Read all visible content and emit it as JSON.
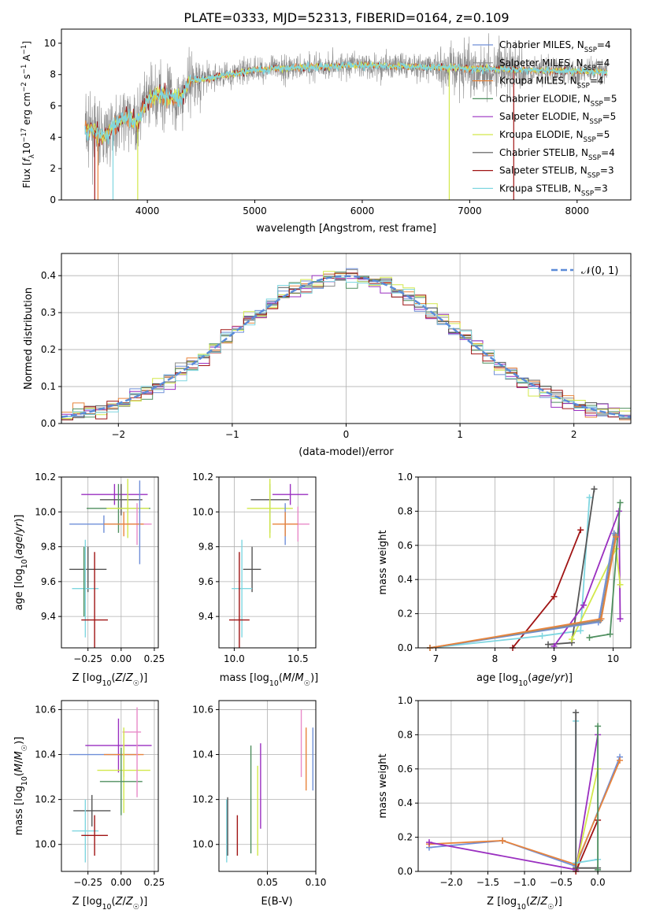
{
  "title": "PLATE=0333, MJD=52313, FIBERID=0164, z=0.109",
  "colors": {
    "chabrier_miles": "#6f8fd8",
    "salpeter_miles": "#8b8b8b",
    "kroupa_miles": "#e8843c",
    "chabrier_elodie": "#4f8f5f",
    "salpeter_elodie": "#9a2fc0",
    "kroupa_elodie": "#d2e84a",
    "chabrier_stelib": "#555555",
    "salpeter_stelib": "#a01414",
    "kroupa_stelib": "#7fd6e0",
    "extra_pink": "#e88ac8",
    "gaussian": "#5b8bd8"
  },
  "chart_data": [
    {
      "id": "spectrum",
      "type": "line",
      "xlabel": "wavelength [Angstrom, rest frame]",
      "ylabel": "Flux [f_λ 10^-17 erg cm^-2 s^-1 A^-1]",
      "xlim": [
        3200,
        8500
      ],
      "ylim": [
        0,
        10.9
      ],
      "xticks": [
        "4000",
        "5000",
        "6000",
        "7000",
        "8000"
      ],
      "yticks": [
        "0",
        "2",
        "4",
        "6",
        "8",
        "10"
      ],
      "legend": [
        {
          "label": "Chabrier MILES, N",
          "sub": "SSP",
          "suffix": "=4",
          "color": "#6f8fd8"
        },
        {
          "label": "Salpeter MILES, N",
          "sub": "SSP",
          "suffix": "=4",
          "color": "#8b8b8b"
        },
        {
          "label": "Kroupa MILES, N",
          "sub": "SSP",
          "suffix": "=4",
          "color": "#e8843c"
        },
        {
          "label": "Chabrier ELODIE, N",
          "sub": "SSP",
          "suffix": "=5",
          "color": "#4f8f5f"
        },
        {
          "label": "Salpeter ELODIE, N",
          "sub": "SSP",
          "suffix": "=5",
          "color": "#9a2fc0"
        },
        {
          "label": "Kroupa ELODIE, N",
          "sub": "SSP",
          "suffix": "=5",
          "color": "#d2e84a"
        },
        {
          "label": "Chabrier STELIB, N",
          "sub": "SSP",
          "suffix": "=4",
          "color": "#555555"
        },
        {
          "label": "Salpeter STELIB, N",
          "sub": "SSP",
          "suffix": "=3",
          "color": "#a01414"
        },
        {
          "label": "Kroupa STELIB, N",
          "sub": "SSP",
          "suffix": "=3",
          "color": "#7fd6e0"
        }
      ],
      "data_range": [
        3420,
        8280
      ],
      "continuum_points": [
        [
          3420,
          4.6
        ],
        [
          3600,
          4.0
        ],
        [
          3700,
          4.8
        ],
        [
          3800,
          5.2
        ],
        [
          3900,
          4.9
        ],
        [
          4000,
          6.4
        ],
        [
          4100,
          6.8
        ],
        [
          4200,
          6.6
        ],
        [
          4300,
          6.4
        ],
        [
          4400,
          7.6
        ],
        [
          4600,
          7.8
        ],
        [
          5000,
          8.3
        ],
        [
          5500,
          8.5
        ],
        [
          6000,
          8.6
        ],
        [
          6500,
          8.5
        ],
        [
          7000,
          8.4
        ],
        [
          7500,
          8.3
        ],
        [
          8000,
          8.2
        ],
        [
          8280,
          8.2
        ]
      ],
      "dropouts": [
        {
          "x": 3510,
          "color": "#a01414"
        },
        {
          "x": 3540,
          "color": "#e8843c"
        },
        {
          "x": 3680,
          "color": "#7fd6e0"
        },
        {
          "x": 3910,
          "color": "#d2e84a"
        },
        {
          "x": 6810,
          "color": "#d2e84a"
        },
        {
          "x": 7410,
          "color": "#a01414"
        }
      ]
    },
    {
      "id": "residuals",
      "type": "histogram",
      "xlabel": "(data-model)/error",
      "ylabel": "Normed distribution",
      "xlim": [
        -2.5,
        2.5
      ],
      "ylim": [
        0,
        0.46
      ],
      "xticks": [
        "−2",
        "−1",
        "0",
        "1",
        "2"
      ],
      "yticks": [
        "0.0",
        "0.1",
        "0.2",
        "0.3",
        "0.4"
      ],
      "bin_width": 0.1,
      "gaussian_label": "𝒩(0, 1)",
      "series_colors": [
        "#6f8fd8",
        "#8b8b8b",
        "#e8843c",
        "#4f8f5f",
        "#9a2fc0",
        "#d2e84a",
        "#555555",
        "#a01414",
        "#7fd6e0"
      ]
    },
    {
      "id": "age_vs_Z",
      "type": "errorbar",
      "xlabel": "Z [log10(Z/Z☉)]",
      "ylabel": "age [log10(age/yr)]",
      "xlim": [
        -0.45,
        0.28
      ],
      "ylim": [
        9.22,
        10.2
      ],
      "xticks": [
        -0.25,
        0.0,
        0.25
      ],
      "xticklabels": [
        "−0.25",
        "0.00",
        "0.25"
      ],
      "yticks": [
        9.4,
        9.6,
        9.8,
        10.0,
        10.2
      ],
      "yticklabels": [
        "9.4",
        "9.6",
        "9.8",
        "10.0",
        "10.2"
      ],
      "points": [
        {
          "x": -0.05,
          "y": 10.1,
          "xerr": 0.25,
          "yerr": 0.06,
          "color": "#9a2fc0"
        },
        {
          "x": 0.0,
          "y": 10.07,
          "xerr": 0.16,
          "yerr": 0.09,
          "color": "#555555"
        },
        {
          "x": -0.02,
          "y": 10.02,
          "xerr": 0.24,
          "yerr": 0.14,
          "color": "#4f8f5f"
        },
        {
          "x": 0.05,
          "y": 10.02,
          "xerr": 0.16,
          "yerr": 0.17,
          "color": "#d2e84a"
        },
        {
          "x": -0.13,
          "y": 9.93,
          "xerr": 0.26,
          "yerr": 0.05,
          "color": "#6f8fd8"
        },
        {
          "x": 0.12,
          "y": 9.93,
          "xerr": 0.11,
          "yerr": 0.12,
          "color": "#e88ac8"
        },
        {
          "x": 0.02,
          "y": 9.93,
          "xerr": 0.15,
          "yerr": 0.07,
          "color": "#e8843c"
        },
        {
          "x": 0.14,
          "y": 9.94,
          "xerr": 0.0,
          "yerr": 0.24,
          "color": "#6f8fd8"
        },
        {
          "x": -0.25,
          "y": 9.67,
          "xerr": 0.14,
          "yerr": 0.13,
          "color": "#555555"
        },
        {
          "x": -0.27,
          "y": 9.56,
          "xerr": 0.1,
          "yerr": 0.28,
          "color": "#7fd6e0"
        },
        {
          "x": -0.28,
          "y": 9.6,
          "xerr": 0.0,
          "yerr": 0.2,
          "color": "#4f8f5f"
        },
        {
          "x": -0.2,
          "y": 9.38,
          "xerr": 0.1,
          "yerr": 0.39,
          "color": "#a01414"
        }
      ]
    },
    {
      "id": "age_vs_mass",
      "type": "errorbar",
      "xlabel": "mass [log10(M/M☉)]",
      "ylabel": "",
      "xlim": [
        9.88,
        10.64
      ],
      "ylim": [
        9.22,
        10.2
      ],
      "xticks": [
        10.0,
        10.5
      ],
      "xticklabels": [
        "10.0",
        "10.5"
      ],
      "yticks": [
        9.4,
        9.6,
        9.8,
        10.0,
        10.2
      ],
      "yticklabels": [
        "9.4",
        "9.6",
        "9.8",
        "10.0",
        "10.2"
      ],
      "points": [
        {
          "x": 10.44,
          "y": 10.1,
          "xerr": 0.14,
          "yerr": 0.06,
          "color": "#9a2fc0"
        },
        {
          "x": 10.28,
          "y": 10.07,
          "xerr": 0.15,
          "yerr": 0.09,
          "color": "#555555"
        },
        {
          "x": 10.28,
          "y": 10.02,
          "xerr": 0.0,
          "yerr": 0.14,
          "color": "#4f8f5f"
        },
        {
          "x": 10.28,
          "y": 10.02,
          "xerr": 0.18,
          "yerr": 0.17,
          "color": "#d2e84a"
        },
        {
          "x": 10.4,
          "y": 9.93,
          "xerr": 0.0,
          "yerr": 0.12,
          "color": "#6f8fd8"
        },
        {
          "x": 10.5,
          "y": 9.93,
          "xerr": 0.09,
          "yerr": 0.1,
          "color": "#e88ac8"
        },
        {
          "x": 10.4,
          "y": 9.93,
          "xerr": 0.1,
          "yerr": 0.07,
          "color": "#e8843c"
        },
        {
          "x": 10.14,
          "y": 9.67,
          "xerr": 0.07,
          "yerr": 0.13,
          "color": "#555555"
        },
        {
          "x": 10.06,
          "y": 9.56,
          "xerr": 0.08,
          "yerr": 0.28,
          "color": "#7fd6e0"
        },
        {
          "x": 10.04,
          "y": 9.38,
          "xerr": 0.08,
          "yerr": 0.39,
          "color": "#a01414"
        }
      ]
    },
    {
      "id": "weight_vs_age",
      "type": "line",
      "xlabel": "age [log10(age/yr)]",
      "ylabel": "mass weight",
      "xlim": [
        6.7,
        10.3
      ],
      "ylim": [
        0,
        1.0
      ],
      "xticks": [
        7,
        8,
        9,
        10
      ],
      "xticklabels": [
        "7",
        "8",
        "9",
        "10"
      ],
      "yticks": [
        0.0,
        0.2,
        0.4,
        0.6,
        0.8,
        1.0
      ],
      "yticklabels": [
        "0.0",
        "0.2",
        "0.4",
        "0.6",
        "0.8",
        "1.0"
      ],
      "series": [
        {
          "color": "#a01414",
          "points": [
            [
              8.3,
              0.0
            ],
            [
              9.0,
              0.3
            ],
            [
              9.45,
              0.69
            ]
          ]
        },
        {
          "color": "#7fd6e0",
          "points": [
            [
              6.9,
              0.0
            ],
            [
              8.8,
              0.07
            ],
            [
              9.45,
              0.1
            ],
            [
              9.6,
              0.88
            ]
          ]
        },
        {
          "color": "#555555",
          "points": [
            [
              8.9,
              0.02
            ],
            [
              9.3,
              0.03
            ],
            [
              9.68,
              0.93
            ]
          ]
        },
        {
          "color": "#9a2fc0",
          "points": [
            [
              9.0,
              0.01
            ],
            [
              9.5,
              0.25
            ],
            [
              10.1,
              0.8
            ],
            [
              10.12,
              0.17
            ]
          ]
        },
        {
          "color": "#d2e84a",
          "points": [
            [
              9.3,
              0.05
            ],
            [
              10.05,
              0.58
            ],
            [
              10.12,
              0.37
            ]
          ]
        },
        {
          "color": "#4f8f5f",
          "points": [
            [
              9.6,
              0.06
            ],
            [
              9.95,
              0.08
            ],
            [
              10.12,
              0.85
            ]
          ]
        },
        {
          "color": "#6f8fd8",
          "points": [
            [
              6.9,
              0.0
            ],
            [
              9.75,
              0.15
            ],
            [
              10.02,
              0.67
            ]
          ]
        },
        {
          "color": "#8b8b8b",
          "points": [
            [
              6.9,
              0.0
            ],
            [
              9.78,
              0.16
            ],
            [
              10.04,
              0.66
            ]
          ]
        },
        {
          "color": "#e8843c",
          "points": [
            [
              6.9,
              0.0
            ],
            [
              9.8,
              0.17
            ],
            [
              10.05,
              0.65
            ]
          ]
        }
      ]
    },
    {
      "id": "mass_vs_Z",
      "type": "errorbar",
      "xlabel": "Z [log10(Z/Z☉)]",
      "ylabel": "mass [log10(M/M☉)]",
      "xlim": [
        -0.45,
        0.28
      ],
      "ylim": [
        9.88,
        10.64
      ],
      "xticks": [
        -0.25,
        0.0,
        0.25
      ],
      "xticklabels": [
        "−0.25",
        "0.00",
        "0.25"
      ],
      "yticks": [
        10.0,
        10.2,
        10.4,
        10.6
      ],
      "yticklabels": [
        "10.0",
        "10.2",
        "10.4",
        "10.6"
      ],
      "points": [
        {
          "x": 0.08,
          "y": 10.5,
          "xerr": 0.07,
          "yerr": 0.0,
          "color": "#e88ac8"
        },
        {
          "x": -0.02,
          "y": 10.44,
          "xerr": 0.25,
          "yerr": 0.12,
          "color": "#9a2fc0"
        },
        {
          "x": -0.13,
          "y": 10.4,
          "xerr": 0.26,
          "yerr": 0.0,
          "color": "#6f8fd8"
        },
        {
          "x": 0.02,
          "y": 10.4,
          "xerr": 0.15,
          "yerr": 0.1,
          "color": "#e8843c"
        },
        {
          "x": 0.02,
          "y": 10.33,
          "xerr": 0.2,
          "yerr": 0.19,
          "color": "#d2e84a"
        },
        {
          "x": 0.0,
          "y": 10.28,
          "xerr": 0.16,
          "yerr": 0.15,
          "color": "#4f8f5f"
        },
        {
          "x": 0.12,
          "y": 10.41,
          "xerr": 0.0,
          "yerr": 0.2,
          "color": "#e88ac8"
        },
        {
          "x": -0.22,
          "y": 10.15,
          "xerr": 0.14,
          "yerr": 0.07,
          "color": "#555555"
        },
        {
          "x": -0.27,
          "y": 10.06,
          "xerr": 0.1,
          "yerr": 0.14,
          "color": "#7fd6e0"
        },
        {
          "x": -0.2,
          "y": 10.04,
          "xerr": 0.1,
          "yerr": 0.09,
          "color": "#a01414"
        }
      ]
    },
    {
      "id": "mass_vs_ebv",
      "type": "errorbar",
      "xlabel": "E(B-V)",
      "ylabel": "",
      "xlim": [
        0.0,
        0.1
      ],
      "ylim": [
        9.88,
        10.64
      ],
      "xticks": [
        0.05,
        0.1
      ],
      "xticklabels": [
        "0.05",
        "0.10"
      ],
      "yticks": [
        10.0,
        10.2,
        10.4,
        10.6
      ],
      "yticklabels": [
        "10.0",
        "10.2",
        "10.4",
        "10.6"
      ],
      "points": [
        {
          "x": 0.008,
          "y": 10.06,
          "xerr": 0.0,
          "yerr": 0.14,
          "color": "#7fd6e0"
        },
        {
          "x": 0.009,
          "y": 10.08,
          "xerr": 0.0,
          "yerr": 0.13,
          "color": "#555555"
        },
        {
          "x": 0.019,
          "y": 10.04,
          "xerr": 0.0,
          "yerr": 0.09,
          "color": "#a01414"
        },
        {
          "x": 0.033,
          "y": 10.2,
          "xerr": 0.0,
          "yerr": 0.24,
          "color": "#4f8f5f"
        },
        {
          "x": 0.04,
          "y": 10.15,
          "xerr": 0.0,
          "yerr": 0.2,
          "color": "#d2e84a"
        },
        {
          "x": 0.043,
          "y": 10.26,
          "xerr": 0.0,
          "yerr": 0.19,
          "color": "#9a2fc0"
        },
        {
          "x": 0.085,
          "y": 10.45,
          "xerr": 0.0,
          "yerr": 0.15,
          "color": "#e88ac8"
        },
        {
          "x": 0.09,
          "y": 10.38,
          "xerr": 0.0,
          "yerr": 0.14,
          "color": "#e8843c"
        },
        {
          "x": 0.097,
          "y": 10.38,
          "xerr": 0.0,
          "yerr": 0.14,
          "color": "#6f8fd8"
        }
      ]
    },
    {
      "id": "weight_vs_Z",
      "type": "line",
      "xlabel": "Z [log10(Z/Z☉)]",
      "ylabel": "mass weight",
      "xlim": [
        -2.45,
        0.45
      ],
      "ylim": [
        0,
        1.0
      ],
      "xticks": [
        -2.0,
        -1.5,
        -1.0,
        -0.5,
        0.0
      ],
      "xticklabels": [
        "−2.0",
        "−1.5",
        "−1.0",
        "−0.5",
        "0.0"
      ],
      "yticks": [
        0.0,
        0.2,
        0.4,
        0.6,
        0.8,
        1.0
      ],
      "yticklabels": [
        "0.0",
        "0.2",
        "0.4",
        "0.6",
        "0.8",
        "1.0"
      ],
      "series": [
        {
          "color": "#6f8fd8",
          "points": [
            [
              -2.3,
              0.14
            ],
            [
              -1.3,
              0.18
            ],
            [
              -0.3,
              0.03
            ],
            [
              0.3,
              0.67
            ]
          ]
        },
        {
          "color": "#e8843c",
          "points": [
            [
              -2.3,
              0.16
            ],
            [
              -1.3,
              0.18
            ],
            [
              -0.3,
              0.04
            ],
            [
              0.3,
              0.65
            ]
          ]
        },
        {
          "color": "#9a2fc0",
          "points": [
            [
              -2.3,
              0.17
            ],
            [
              -0.3,
              0.01
            ],
            [
              0.0,
              0.8
            ]
          ]
        },
        {
          "color": "#d2e84a",
          "points": [
            [
              -0.3,
              0.02
            ],
            [
              0.0,
              0.6
            ]
          ]
        },
        {
          "color": "#a01414",
          "points": [
            [
              -0.3,
              0.0
            ],
            [
              0.0,
              0.3
            ]
          ]
        },
        {
          "color": "#7fd6e0",
          "points": [
            [
              -0.3,
              0.88
            ],
            [
              -0.3,
              0.05
            ],
            [
              0.0,
              0.07
            ]
          ]
        },
        {
          "color": "#555555",
          "points": [
            [
              -0.3,
              0.93
            ],
            [
              -0.3,
              0.02
            ],
            [
              0.0,
              0.02
            ]
          ]
        },
        {
          "color": "#4f8f5f",
          "points": [
            [
              0.0,
              0.85
            ],
            [
              0.0,
              0.01
            ]
          ]
        }
      ]
    }
  ]
}
